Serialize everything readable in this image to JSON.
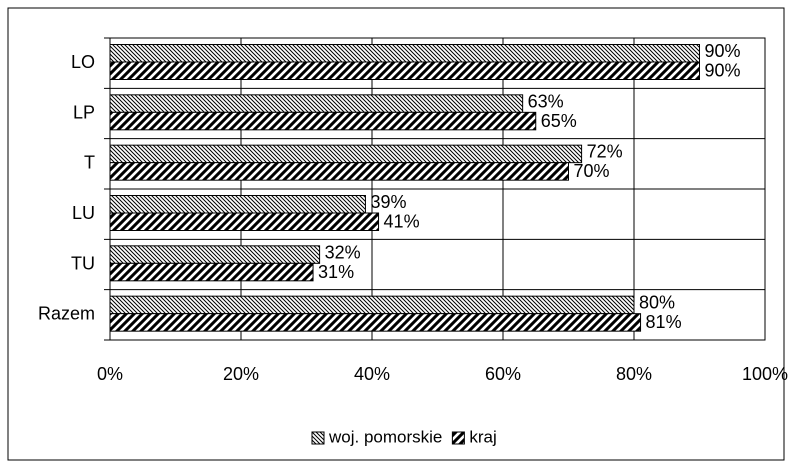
{
  "chart_data": {
    "type": "bar",
    "orientation": "horizontal",
    "categories": [
      "LO",
      "LP",
      "T",
      "LU",
      "TU",
      "Razem"
    ],
    "series": [
      {
        "name": "woj. pomorskie",
        "color": "#000000",
        "hatch": "fine",
        "values": [
          90,
          63,
          72,
          39,
          32,
          80
        ],
        "value_labels": [
          "90%",
          "63%",
          "72%",
          "39%",
          "32%",
          "80%"
        ]
      },
      {
        "name": "kraj",
        "color": "#000000",
        "hatch": "bold",
        "values": [
          90,
          65,
          70,
          41,
          31,
          81
        ],
        "value_labels": [
          "90%",
          "65%",
          "70%",
          "41%",
          "31%",
          "81%"
        ]
      }
    ],
    "xlim": [
      0,
      100
    ],
    "xticks": [
      {
        "value": 0,
        "label": "0%"
      },
      {
        "value": 20,
        "label": "20%"
      },
      {
        "value": 40,
        "label": "40%"
      },
      {
        "value": 60,
        "label": "60%"
      },
      {
        "value": 80,
        "label": "80%"
      },
      {
        "value": 100,
        "label": "100%"
      }
    ],
    "grid": true,
    "legend": "bottom"
  }
}
